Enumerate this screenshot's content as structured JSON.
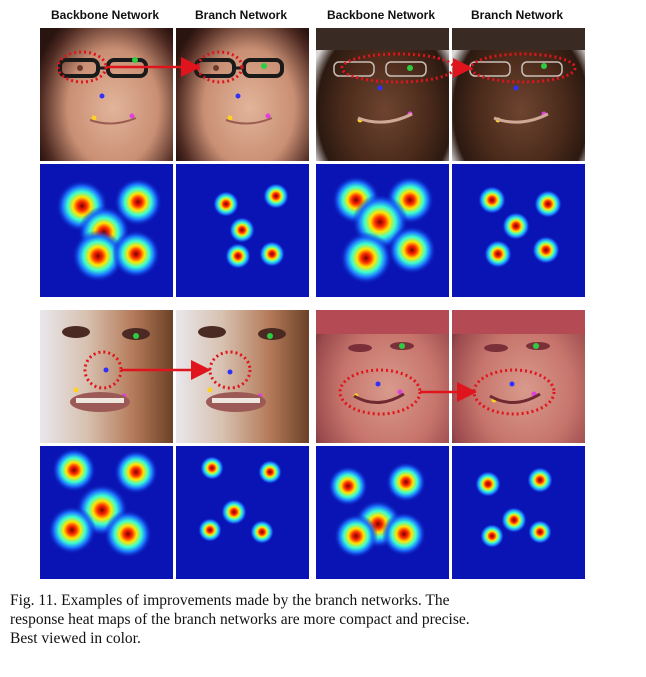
{
  "headers": {
    "top_left_backbone": "Backbone Network",
    "top_left_branch": "Branch Network",
    "top_right_backbone": "Backbone Network",
    "top_right_branch": "Branch Network"
  },
  "caption": {
    "line1": "Fig. 11.   Examples of improvements made by the branch networks. The",
    "line2": "response heat maps of the branch networks are more compact and precise.",
    "line3": "Best viewed in color."
  },
  "colors": {
    "annotation_red": "#e0141c",
    "heatmap_background": "#0a14b4",
    "landmark_green": "#2ecc40",
    "landmark_blue": "#3030ff",
    "landmark_yellow": "#ffd21f",
    "landmark_magenta": "#e040e0"
  },
  "icons": {
    "annotation": "red-dotted-ellipse",
    "transfer": "red-arrow"
  }
}
